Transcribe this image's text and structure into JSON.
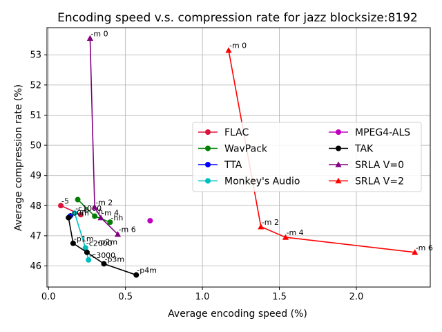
{
  "chart_data": {
    "type": "line",
    "title": "Encoding speed v.s. compression rate for jazz blocksize:8192",
    "xlabel": "Average encoding speed (%)",
    "ylabel": "Average compression rate (%)",
    "xlim": [
      -0.01,
      2.48
    ],
    "ylim": [
      45.3,
      53.9
    ],
    "xticks": [
      0.0,
      0.5,
      1.0,
      1.5,
      2.0
    ],
    "xtick_labels": [
      "0.0",
      "0.5",
      "1.0",
      "1.5",
      "2.0"
    ],
    "yticks": [
      46,
      47,
      48,
      49,
      50,
      51,
      52,
      53
    ],
    "ytick_labels": [
      "46",
      "47",
      "48",
      "49",
      "50",
      "51",
      "52",
      "53"
    ],
    "grid": true,
    "legend_position": "center-right",
    "series": [
      {
        "name": "FLAC",
        "color": "#dc143c",
        "marker": "circle",
        "points": [
          {
            "x": 0.08,
            "y": 48.0,
            "label": "-5"
          },
          {
            "x": 0.21,
            "y": 47.7,
            "label": "-8"
          }
        ]
      },
      {
        "name": "WavPack",
        "color": "#008000",
        "marker": "circle",
        "points": [
          {
            "x": 0.19,
            "y": 48.2,
            "label": ""
          },
          {
            "x": 0.3,
            "y": 47.65,
            "label": "-h"
          },
          {
            "x": 0.4,
            "y": 47.45,
            "label": "-hh"
          }
        ]
      },
      {
        "name": "TTA",
        "color": "#0000ff",
        "marker": "circle",
        "points": [
          {
            "x": 0.14,
            "y": 47.65,
            "label": ""
          }
        ]
      },
      {
        "name": "Monkey's Audio",
        "color": "#00bfbf",
        "marker": "circle",
        "points": [
          {
            "x": 0.17,
            "y": 47.75,
            "label": "-c1000"
          },
          {
            "x": 0.24,
            "y": 46.6,
            "label": "-c2000"
          },
          {
            "x": 0.26,
            "y": 46.2,
            "label": "-c3000"
          }
        ]
      },
      {
        "name": "MPEG4-ALS",
        "color": "#bf00bf",
        "marker": "circle",
        "points": [
          {
            "x": 0.66,
            "y": 47.5,
            "label": ""
          }
        ]
      },
      {
        "name": "TAK",
        "color": "#000000",
        "marker": "circle",
        "points": [
          {
            "x": 0.13,
            "y": 47.6,
            "label": "-p0m"
          },
          {
            "x": 0.16,
            "y": 46.75,
            "label": "-p1m"
          },
          {
            "x": 0.25,
            "y": 46.45,
            "label": ""
          },
          {
            "x": 0.36,
            "y": 46.07,
            "label": "-p3m"
          },
          {
            "x": 0.57,
            "y": 45.7,
            "label": "-p4m"
          }
        ]
      },
      {
        "name": "SRLA V=0",
        "color": "#800080",
        "marker": "triangle",
        "points": [
          {
            "x": 0.27,
            "y": 53.55,
            "label": "-m 0"
          },
          {
            "x": 0.3,
            "y": 47.95,
            "label": "-m 2"
          },
          {
            "x": 0.34,
            "y": 47.6,
            "label": "-m 4"
          },
          {
            "x": 0.45,
            "y": 47.05,
            "label": "-m 6"
          }
        ]
      },
      {
        "name": "SRLA V=2",
        "color": "#ff0000",
        "marker": "triangle",
        "points": [
          {
            "x": 1.17,
            "y": 53.15,
            "label": "-m 0"
          },
          {
            "x": 1.38,
            "y": 47.3,
            "label": "-m 2"
          },
          {
            "x": 1.54,
            "y": 46.95,
            "label": "-m 4"
          },
          {
            "x": 2.38,
            "y": 46.45,
            "label": "-m 6"
          }
        ]
      }
    ],
    "annotations": [
      {
        "text": "-p2m",
        "x": 0.4,
        "y": 46.8
      }
    ],
    "legend_columns": [
      [
        "FLAC",
        "WavPack",
        "TTA",
        "Monkey's Audio"
      ],
      [
        "MPEG4-ALS",
        "TAK",
        "SRLA V=0",
        "SRLA V=2"
      ]
    ]
  }
}
